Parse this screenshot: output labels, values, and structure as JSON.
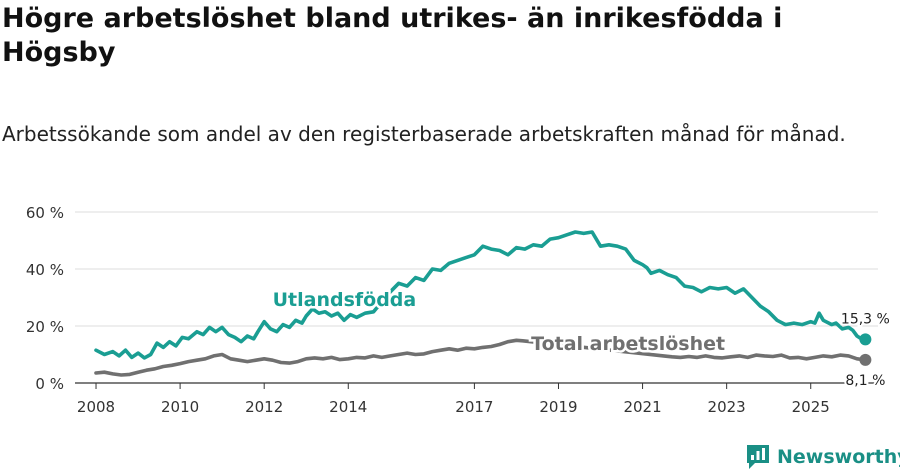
{
  "header": {
    "title": "Högre arbetslöshet bland utrikes- än inrikesfödda i Högsby",
    "subtitle": "Arbetssökande som andel av den registerbaserade arbetskraften månad för månad."
  },
  "branding": {
    "name": "Newsworthy"
  },
  "colors": {
    "utlandsfodda": "#1a9e93",
    "total": "#707070",
    "grid": "#dcdcdc",
    "axis": "#333333"
  },
  "chart_data": {
    "type": "line",
    "xlim": [
      2007.5,
      2026.6
    ],
    "ylim": [
      0,
      60
    ],
    "yticks": [
      0,
      20,
      40,
      60
    ],
    "ytick_labels": [
      "0 %",
      "20 %",
      "40 %",
      "60 %"
    ],
    "xticks": [
      2008,
      2010,
      2012,
      2014,
      2017,
      2019,
      2021,
      2023,
      2025
    ],
    "xtick_labels": [
      "2008",
      "2010",
      "2012",
      "2014",
      "2017",
      "2019",
      "2021",
      "2023",
      "2025"
    ],
    "series": [
      {
        "name": "Utlandsfödda",
        "label": "Utlandsfödda",
        "end_label": "15,3 %",
        "points": [
          [
            2008.0,
            11.5
          ],
          [
            2008.2,
            10.0
          ],
          [
            2008.4,
            11.0
          ],
          [
            2008.55,
            9.5
          ],
          [
            2008.7,
            11.5
          ],
          [
            2008.85,
            9.0
          ],
          [
            2009.0,
            10.5
          ],
          [
            2009.15,
            8.8
          ],
          [
            2009.3,
            10.0
          ],
          [
            2009.45,
            14.0
          ],
          [
            2009.6,
            12.5
          ],
          [
            2009.75,
            14.5
          ],
          [
            2009.9,
            13.0
          ],
          [
            2010.05,
            16.0
          ],
          [
            2010.2,
            15.5
          ],
          [
            2010.4,
            18.0
          ],
          [
            2010.55,
            17.0
          ],
          [
            2010.7,
            19.5
          ],
          [
            2010.85,
            18.0
          ],
          [
            2011.0,
            19.5
          ],
          [
            2011.15,
            17.0
          ],
          [
            2011.3,
            16.0
          ],
          [
            2011.45,
            14.5
          ],
          [
            2011.6,
            16.5
          ],
          [
            2011.75,
            15.5
          ],
          [
            2011.85,
            18.0
          ],
          [
            2012.0,
            21.5
          ],
          [
            2012.15,
            19.0
          ],
          [
            2012.3,
            18.0
          ],
          [
            2012.45,
            20.5
          ],
          [
            2012.6,
            19.5
          ],
          [
            2012.75,
            22.0
          ],
          [
            2012.9,
            21.0
          ],
          [
            2013.0,
            23.5
          ],
          [
            2013.15,
            26.0
          ],
          [
            2013.3,
            24.5
          ],
          [
            2013.45,
            25.0
          ],
          [
            2013.6,
            23.5
          ],
          [
            2013.75,
            24.5
          ],
          [
            2013.9,
            22.0
          ],
          [
            2014.05,
            24.0
          ],
          [
            2014.2,
            23.0
          ],
          [
            2014.4,
            24.5
          ],
          [
            2014.6,
            25.0
          ],
          [
            2015.0,
            32.0
          ],
          [
            2015.2,
            35.0
          ],
          [
            2015.4,
            34.0
          ],
          [
            2015.6,
            37.0
          ],
          [
            2015.8,
            36.0
          ],
          [
            2016.0,
            40.0
          ],
          [
            2016.2,
            39.5
          ],
          [
            2016.4,
            42.0
          ],
          [
            2016.6,
            43.0
          ],
          [
            2016.8,
            44.0
          ],
          [
            2017.0,
            45.0
          ],
          [
            2017.2,
            48.0
          ],
          [
            2017.4,
            47.0
          ],
          [
            2017.6,
            46.5
          ],
          [
            2017.8,
            45.0
          ],
          [
            2018.0,
            47.5
          ],
          [
            2018.2,
            47.0
          ],
          [
            2018.4,
            48.5
          ],
          [
            2018.6,
            48.0
          ],
          [
            2018.8,
            50.5
          ],
          [
            2019.0,
            51.0
          ],
          [
            2019.2,
            52.0
          ],
          [
            2019.4,
            53.0
          ],
          [
            2019.6,
            52.5
          ],
          [
            2019.8,
            53.0
          ],
          [
            2020.0,
            48.0
          ],
          [
            2020.2,
            48.5
          ],
          [
            2020.4,
            48.0
          ],
          [
            2020.6,
            47.0
          ],
          [
            2020.8,
            43.0
          ],
          [
            2021.0,
            41.5
          ],
          [
            2021.1,
            40.5
          ],
          [
            2021.2,
            38.5
          ],
          [
            2021.4,
            39.5
          ],
          [
            2021.6,
            38.0
          ],
          [
            2021.8,
            37.0
          ],
          [
            2022.0,
            34.0
          ],
          [
            2022.2,
            33.5
          ],
          [
            2022.4,
            32.0
          ],
          [
            2022.6,
            33.5
          ],
          [
            2022.8,
            33.0
          ],
          [
            2023.0,
            33.5
          ],
          [
            2023.2,
            31.5
          ],
          [
            2023.4,
            33.0
          ],
          [
            2023.6,
            30.0
          ],
          [
            2023.8,
            27.0
          ],
          [
            2024.0,
            25.0
          ],
          [
            2024.2,
            22.0
          ],
          [
            2024.4,
            20.5
          ],
          [
            2024.6,
            21.0
          ],
          [
            2024.8,
            20.5
          ],
          [
            2025.0,
            21.5
          ],
          [
            2025.1,
            21.0
          ],
          [
            2025.2,
            24.5
          ],
          [
            2025.3,
            22.0
          ],
          [
            2025.5,
            20.5
          ],
          [
            2025.6,
            21.0
          ],
          [
            2025.75,
            19.0
          ],
          [
            2025.9,
            19.5
          ],
          [
            2026.0,
            18.5
          ],
          [
            2026.1,
            16.5
          ],
          [
            2026.2,
            15.5
          ],
          [
            2026.3,
            15.3
          ]
        ]
      },
      {
        "name": "Total arbetslöshet",
        "label": "Total arbetslöshet",
        "end_label": "8,1 %",
        "points": [
          [
            2008.0,
            3.5
          ],
          [
            2008.2,
            3.8
          ],
          [
            2008.4,
            3.2
          ],
          [
            2008.6,
            2.8
          ],
          [
            2008.8,
            3.0
          ],
          [
            2009.0,
            3.8
          ],
          [
            2009.2,
            4.5
          ],
          [
            2009.4,
            5.0
          ],
          [
            2009.6,
            5.8
          ],
          [
            2009.8,
            6.2
          ],
          [
            2010.0,
            6.8
          ],
          [
            2010.2,
            7.5
          ],
          [
            2010.4,
            8.0
          ],
          [
            2010.6,
            8.5
          ],
          [
            2010.8,
            9.5
          ],
          [
            2011.0,
            10.0
          ],
          [
            2011.2,
            8.5
          ],
          [
            2011.4,
            8.0
          ],
          [
            2011.6,
            7.5
          ],
          [
            2011.8,
            8.0
          ],
          [
            2012.0,
            8.5
          ],
          [
            2012.2,
            8.0
          ],
          [
            2012.4,
            7.2
          ],
          [
            2012.6,
            7.0
          ],
          [
            2012.8,
            7.5
          ],
          [
            2013.0,
            8.5
          ],
          [
            2013.2,
            8.8
          ],
          [
            2013.4,
            8.5
          ],
          [
            2013.6,
            9.0
          ],
          [
            2013.8,
            8.2
          ],
          [
            2014.0,
            8.5
          ],
          [
            2014.2,
            9.0
          ],
          [
            2014.4,
            8.8
          ],
          [
            2014.6,
            9.5
          ],
          [
            2014.8,
            9.0
          ],
          [
            2015.0,
            9.5
          ],
          [
            2015.2,
            10.0
          ],
          [
            2015.4,
            10.5
          ],
          [
            2015.6,
            10.0
          ],
          [
            2015.8,
            10.2
          ],
          [
            2016.0,
            11.0
          ],
          [
            2016.2,
            11.5
          ],
          [
            2016.4,
            12.0
          ],
          [
            2016.6,
            11.5
          ],
          [
            2016.8,
            12.2
          ],
          [
            2017.0,
            12.0
          ],
          [
            2017.2,
            12.5
          ],
          [
            2017.4,
            12.8
          ],
          [
            2017.6,
            13.5
          ],
          [
            2017.8,
            14.5
          ],
          [
            2018.0,
            15.0
          ],
          [
            2018.15,
            14.8
          ],
          [
            2021.5,
            9.5
          ],
          [
            2021.7,
            9.2
          ],
          [
            2021.9,
            9.0
          ],
          [
            2022.1,
            9.3
          ],
          [
            2022.3,
            9.0
          ],
          [
            2022.5,
            9.5
          ],
          [
            2022.7,
            9.0
          ],
          [
            2022.9,
            8.8
          ],
          [
            2023.1,
            9.2
          ],
          [
            2023.3,
            9.5
          ],
          [
            2023.5,
            9.0
          ],
          [
            2023.7,
            9.8
          ],
          [
            2023.9,
            9.5
          ],
          [
            2024.1,
            9.3
          ],
          [
            2024.3,
            9.8
          ],
          [
            2024.5,
            8.8
          ],
          [
            2024.7,
            9.0
          ],
          [
            2024.9,
            8.5
          ],
          [
            2025.1,
            9.0
          ],
          [
            2025.3,
            9.5
          ],
          [
            2025.5,
            9.2
          ],
          [
            2025.7,
            9.8
          ],
          [
            2025.9,
            9.5
          ],
          [
            2026.1,
            8.5
          ],
          [
            2026.3,
            8.1
          ]
        ]
      }
    ]
  }
}
